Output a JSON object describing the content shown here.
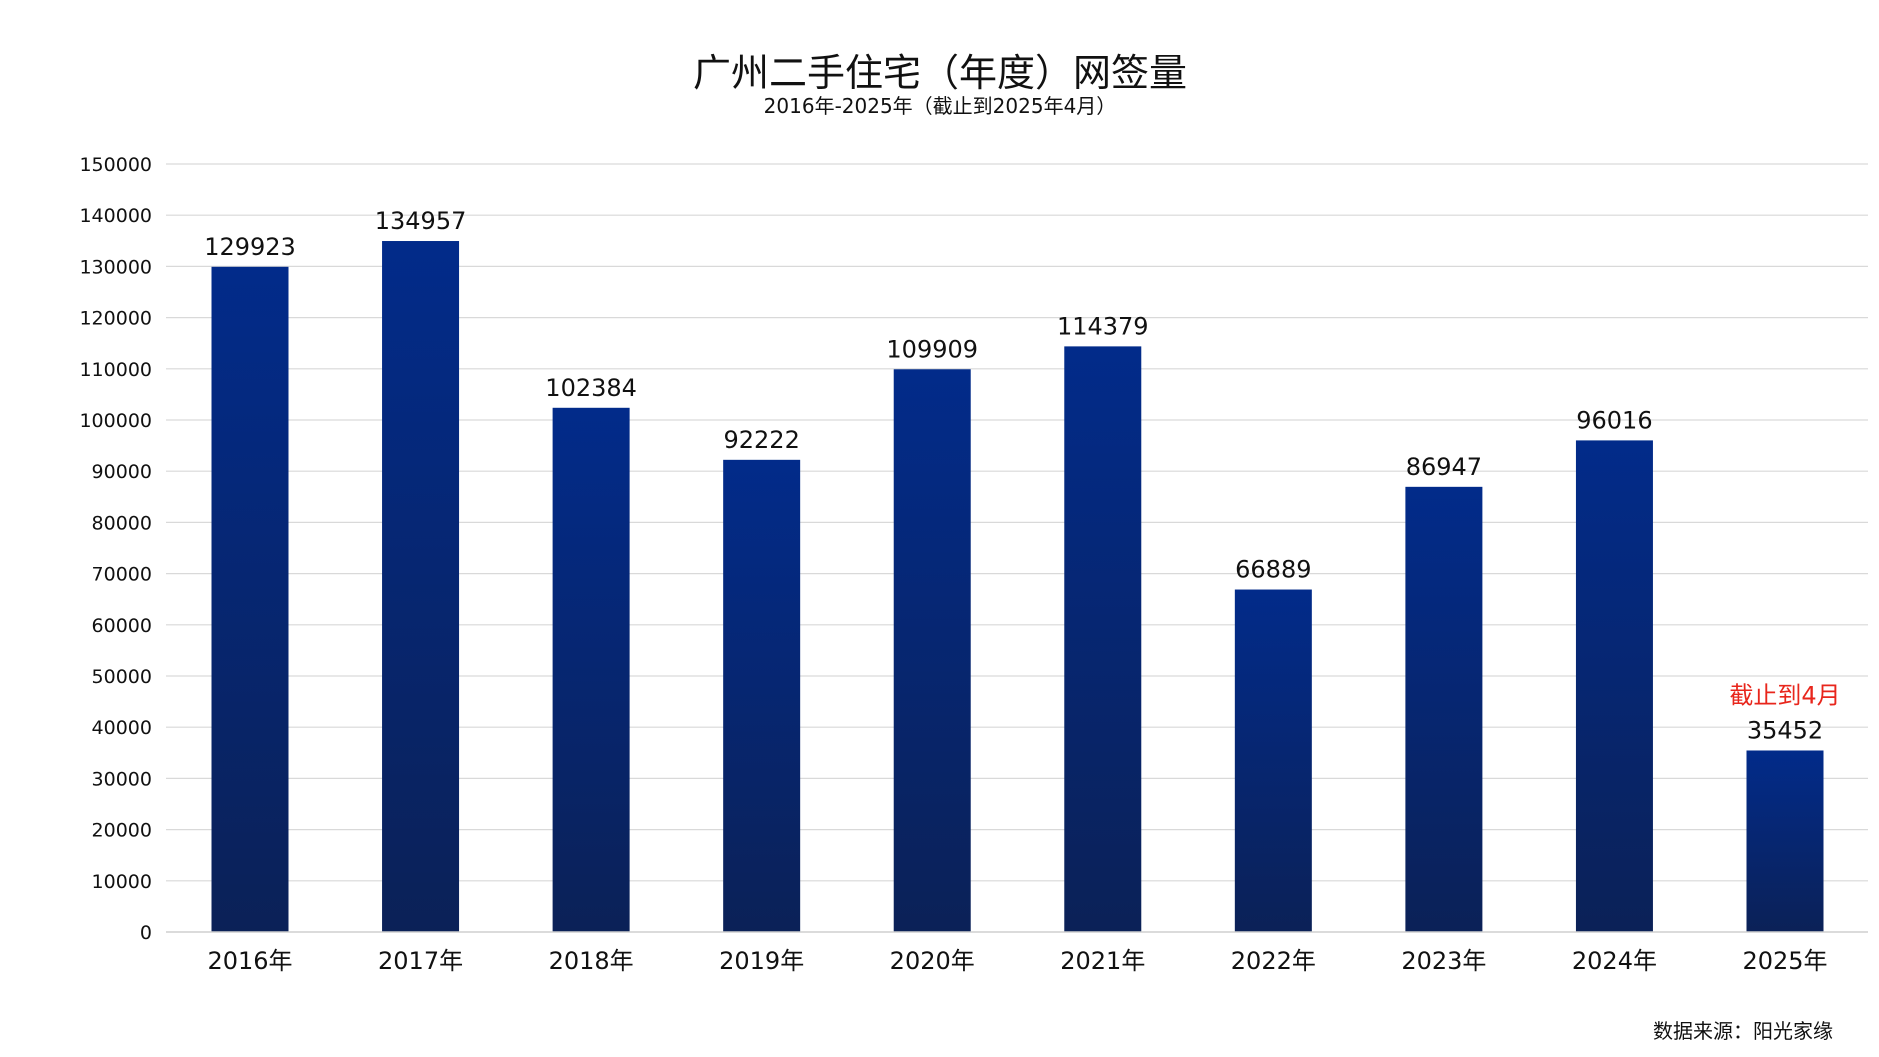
{
  "chart_data": {
    "type": "bar",
    "title": "广州二手住宅（年度）网签量",
    "subtitle": "2016年-2025年（截止到2025年4月）",
    "categories": [
      "2016年",
      "2017年",
      "2018年",
      "2019年",
      "2020年",
      "2021年",
      "2022年",
      "2023年",
      "2024年",
      "2025年"
    ],
    "values": [
      129923,
      134957,
      102384,
      92222,
      109909,
      114379,
      66889,
      86947,
      96016,
      35452
    ],
    "ylim": [
      0,
      150000
    ],
    "ytick_step": 10000,
    "yticks": [
      "0",
      "10000",
      "20000",
      "30000",
      "40000",
      "50000",
      "60000",
      "70000",
      "80000",
      "90000",
      "100000",
      "110000",
      "120000",
      "130000",
      "140000",
      "150000"
    ],
    "xlabel": "",
    "ylabel": "",
    "grid": true,
    "legend": "none",
    "annotation": {
      "category": "2025年",
      "text": "截止到4月",
      "color": "#e8261c"
    },
    "bar_colors": {
      "top": "#022b8a",
      "bottom": "#0b2157"
    },
    "source": "数据来源：阳光家缘"
  }
}
